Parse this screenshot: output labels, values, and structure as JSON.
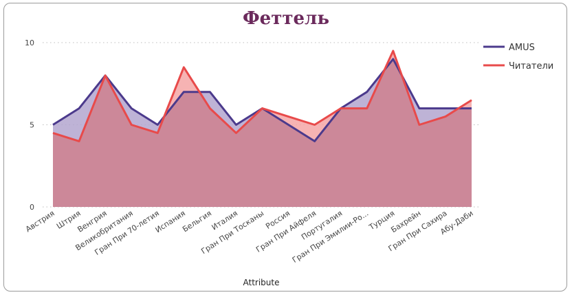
{
  "chart_data": {
    "type": "area",
    "title": "Феттель",
    "xlabel": "Attribute",
    "ylabel": "",
    "ylim": [
      0,
      10
    ],
    "yticks": [
      0,
      5,
      10
    ],
    "grid": true,
    "legend_position": "top-right",
    "categories": [
      "Австрия",
      "Штрия",
      "Венгрия",
      "Великобритания",
      "Гран При 70-летия",
      "Испания",
      "Бельгия",
      "Италия",
      "Гран При Тосканы",
      "Россия",
      "Гран При Айфеля",
      "Португалия",
      "Гран При Эмилии-Ро...",
      "Турция",
      "Бахрейн",
      "Гран При Сахира",
      "Абу-Даби"
    ],
    "series": [
      {
        "name": "AMUS",
        "color": "#4b3a8c",
        "fill": "#b3a6cf",
        "values": [
          5,
          6,
          8,
          6,
          5,
          7,
          7,
          5,
          6,
          5,
          4,
          6,
          7,
          9,
          6,
          6,
          6
        ]
      },
      {
        "name": "Читатели",
        "color": "#e84a4a",
        "fill": "#f4a6a6",
        "values": [
          4.5,
          4,
          8,
          5,
          4.5,
          8.5,
          6,
          4.5,
          6,
          5.5,
          5,
          6,
          6,
          9.5,
          5,
          5.5,
          6.5
        ]
      }
    ],
    "overlap_fill": "#cc8899"
  }
}
